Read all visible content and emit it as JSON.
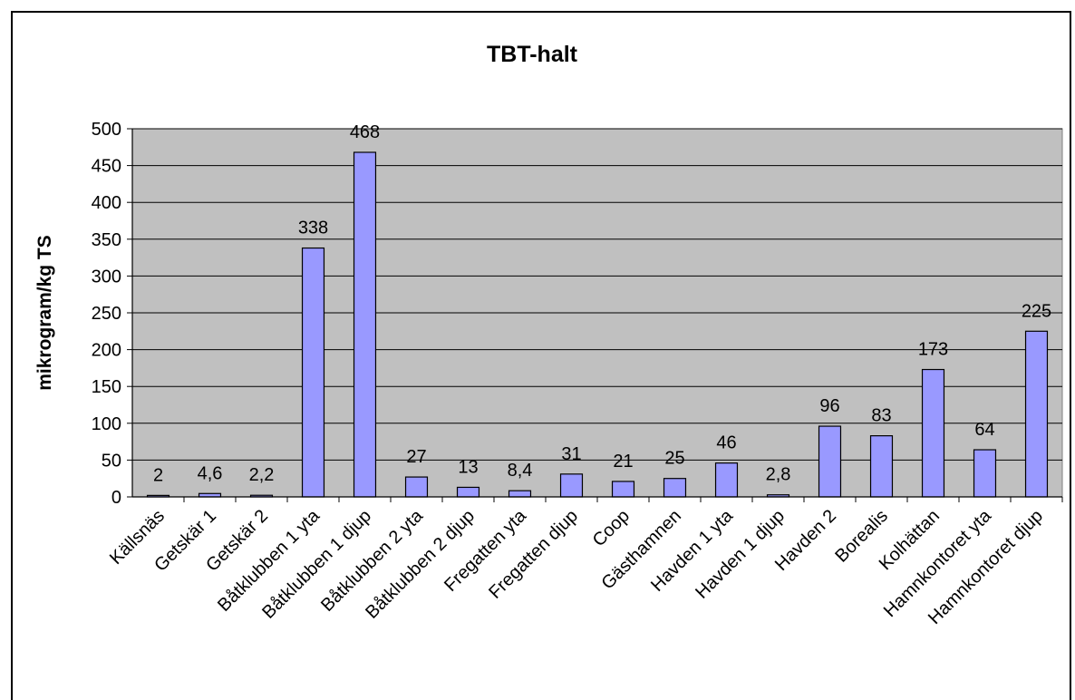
{
  "chart_data": {
    "type": "bar",
    "title": "TBT-halt",
    "ylabel": "mikrogram/kg TS",
    "xlabel": "",
    "ylim": [
      0,
      500
    ],
    "yticks": [
      "0",
      "50",
      "100",
      "150",
      "200",
      "250",
      "300",
      "350",
      "400",
      "450",
      "500"
    ],
    "categories": [
      "Källsnäs",
      "Getskär 1",
      "Getskär 2",
      "Båtklubben 1 yta",
      "Båtklubben 1 djup",
      "Båtklubben 2 yta",
      "Båtklubben 2 djup",
      "Fregatten yta",
      "Fregatten djup",
      "Coop",
      "Gästhamnen",
      "Havden 1 yta",
      "Havden 1 djup",
      "Havden 2",
      "Borealis",
      "Kolhättan",
      "Hamnkontoret yta",
      "Hamnkontoret djup"
    ],
    "values": [
      2,
      4.6,
      2.2,
      338,
      468,
      27,
      13,
      8.4,
      31,
      21,
      25,
      46,
      2.8,
      96,
      83,
      173,
      64,
      225
    ],
    "data_labels": [
      "2",
      "4,6",
      "2,2",
      "338",
      "468",
      "27",
      "13",
      "8,4",
      "31",
      "21",
      "25",
      "46",
      "2,8",
      "96",
      "83",
      "173",
      "64",
      "225"
    ],
    "grid": true,
    "legend": "none",
    "colors": {
      "bar": "#9999ff",
      "plot_bg": "#c0c0c0",
      "grid": "#000000"
    }
  }
}
